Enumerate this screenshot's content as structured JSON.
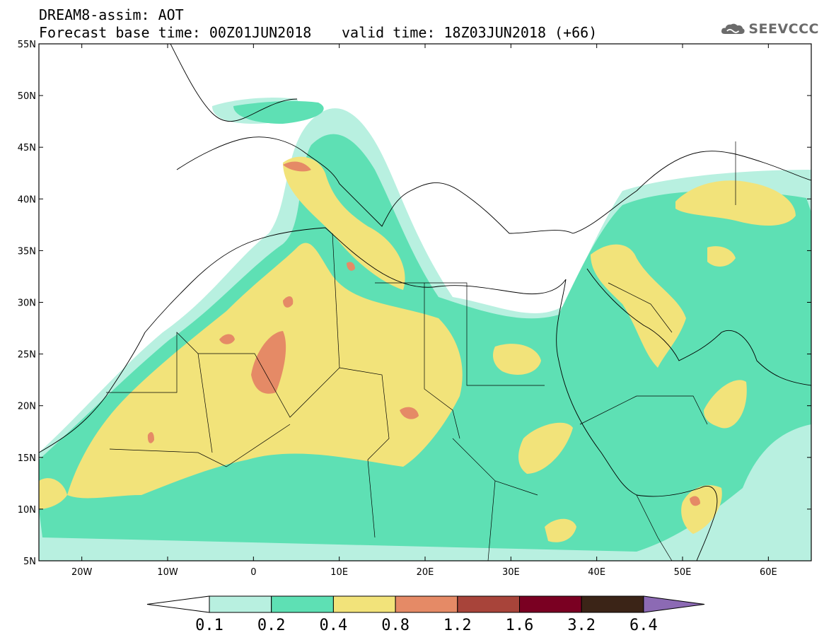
{
  "header": {
    "line1": "DREAM8-assim: AOT",
    "base_time": "Forecast base time: 00Z01JUN2018",
    "valid_time": "valid time: 18Z03JUN2018 (+66)",
    "logo_text": "SEEVCCC",
    "logo_icon": "cloud-icon"
  },
  "map": {
    "lat_labels": [
      "55N",
      "50N",
      "45N",
      "40N",
      "35N",
      "30N",
      "25N",
      "20N",
      "15N",
      "10N",
      "5N"
    ],
    "lon_labels": [
      "20W",
      "10W",
      "0",
      "10E",
      "20E",
      "30E",
      "40E",
      "50E",
      "60E"
    ],
    "lat_range": [
      5,
      55
    ],
    "lon_range": [
      -25,
      65
    ]
  },
  "colorbar": {
    "labels": [
      "0.1",
      "0.2",
      "0.4",
      "0.8",
      "1.2",
      "1.6",
      "3.2",
      "6.4"
    ],
    "colors": [
      "#ffffff",
      "#b8f0e0",
      "#5ee0b4",
      "#f2e37a",
      "#e58a66",
      "#a8443a",
      "#7a0022",
      "#3b2417",
      "#8c6ab4"
    ]
  }
}
